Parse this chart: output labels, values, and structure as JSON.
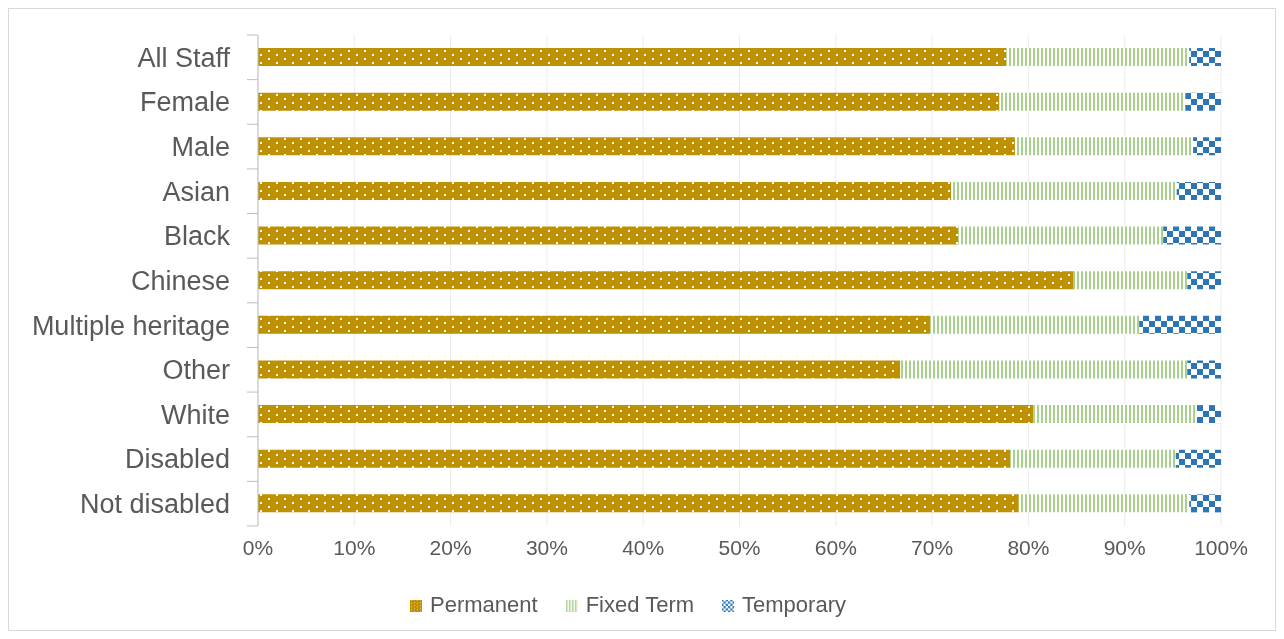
{
  "chart_data": {
    "type": "bar",
    "orientation": "horizontal",
    "stacked": true,
    "categories": [
      "All Staff",
      "Female",
      "Male",
      "Asian",
      "Black",
      "Chinese",
      "Multiple heritage",
      "Other",
      "White",
      "Disabled",
      "Not disabled"
    ],
    "series": [
      {
        "name": "Permanent",
        "color": "#bf9000",
        "values": [
          77.7,
          77.0,
          78.6,
          72.0,
          72.7,
          84.7,
          69.8,
          66.7,
          80.5,
          78.1,
          79.0
        ]
      },
      {
        "name": "Fixed Term",
        "color": "#a9d18e",
        "values": [
          19.0,
          19.3,
          18.5,
          23.4,
          21.3,
          11.8,
          21.7,
          29.8,
          17.0,
          17.2,
          17.7
        ]
      },
      {
        "name": "Temporary",
        "color": "#2e75b6",
        "values": [
          3.3,
          3.7,
          2.9,
          4.6,
          6.0,
          3.5,
          8.5,
          3.5,
          2.5,
          4.7,
          3.3
        ]
      }
    ],
    "xlim": [
      0,
      100
    ],
    "xticks": [
      {
        "value": 0,
        "label": "0%"
      },
      {
        "value": 10,
        "label": "10%"
      },
      {
        "value": 20,
        "label": "20%"
      },
      {
        "value": 30,
        "label": "30%"
      },
      {
        "value": 40,
        "label": "40%"
      },
      {
        "value": 50,
        "label": "50%"
      },
      {
        "value": 60,
        "label": "60%"
      },
      {
        "value": 70,
        "label": "70%"
      },
      {
        "value": 80,
        "label": "80%"
      },
      {
        "value": 90,
        "label": "90%"
      },
      {
        "value": 100,
        "label": "100%"
      }
    ],
    "grid": "x",
    "legend": "bottom"
  }
}
